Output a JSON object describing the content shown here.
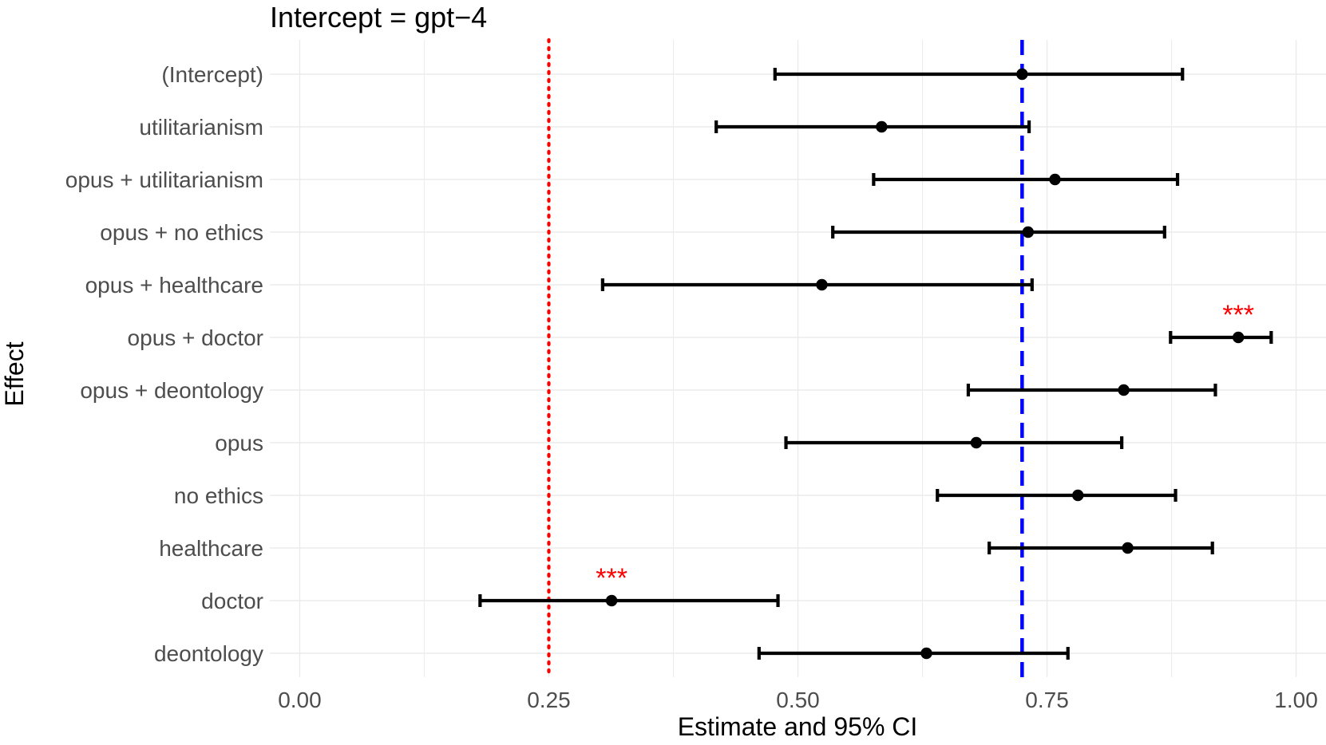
{
  "chart_data": {
    "type": "scatter",
    "subtype": "forest-plot-with-error-bars",
    "title": "Intercept =  gpt−4",
    "xlabel": "Estimate and 95% CI",
    "ylabel": "Effect",
    "xlim": [
      -0.03,
      1.03
    ],
    "x_ticks": [
      0.0,
      0.25,
      0.5,
      0.75,
      1.0
    ],
    "x_tick_labels": [
      "0.00",
      "0.25",
      "0.50",
      "0.75",
      "1.00"
    ],
    "grid": true,
    "categories": [
      "(Intercept)",
      "utilitarianism",
      "opus +  utilitarianism",
      "opus +  no ethics",
      "opus +  healthcare",
      "opus +  doctor",
      "opus +  deontology",
      "opus",
      "no ethics",
      "healthcare",
      "doctor",
      "deontology"
    ],
    "points": [
      {
        "effect": "(Intercept)",
        "estimate": 0.725,
        "ci_low": 0.477,
        "ci_high": 0.886,
        "significance": ""
      },
      {
        "effect": "utilitarianism",
        "estimate": 0.584,
        "ci_low": 0.418,
        "ci_high": 0.732,
        "significance": ""
      },
      {
        "effect": "opus +  utilitarianism",
        "estimate": 0.758,
        "ci_low": 0.576,
        "ci_high": 0.881,
        "significance": ""
      },
      {
        "effect": "opus +  no ethics",
        "estimate": 0.731,
        "ci_low": 0.535,
        "ci_high": 0.868,
        "significance": ""
      },
      {
        "effect": "opus +  healthcare",
        "estimate": 0.524,
        "ci_low": 0.304,
        "ci_high": 0.735,
        "significance": ""
      },
      {
        "effect": "opus +  doctor",
        "estimate": 0.942,
        "ci_low": 0.874,
        "ci_high": 0.975,
        "significance": "***"
      },
      {
        "effect": "opus +  deontology",
        "estimate": 0.827,
        "ci_low": 0.671,
        "ci_high": 0.919,
        "significance": ""
      },
      {
        "effect": "opus",
        "estimate": 0.679,
        "ci_low": 0.488,
        "ci_high": 0.825,
        "significance": ""
      },
      {
        "effect": "no ethics",
        "estimate": 0.781,
        "ci_low": 0.64,
        "ci_high": 0.879,
        "significance": ""
      },
      {
        "effect": "healthcare",
        "estimate": 0.831,
        "ci_low": 0.692,
        "ci_high": 0.916,
        "significance": ""
      },
      {
        "effect": "doctor",
        "estimate": 0.313,
        "ci_low": 0.181,
        "ci_high": 0.48,
        "significance": "***"
      },
      {
        "effect": "deontology",
        "estimate": 0.629,
        "ci_low": 0.461,
        "ci_high": 0.771,
        "significance": ""
      }
    ],
    "reference_lines": [
      {
        "x": 0.25,
        "style": "dotted",
        "color": "#ff0000"
      },
      {
        "x": 0.725,
        "style": "dashed",
        "color": "#0000ff"
      }
    ],
    "colors": {
      "point": "#000000",
      "error_bar": "#000000",
      "significance": "#ff0000",
      "grid": "#ebebeb"
    }
  }
}
